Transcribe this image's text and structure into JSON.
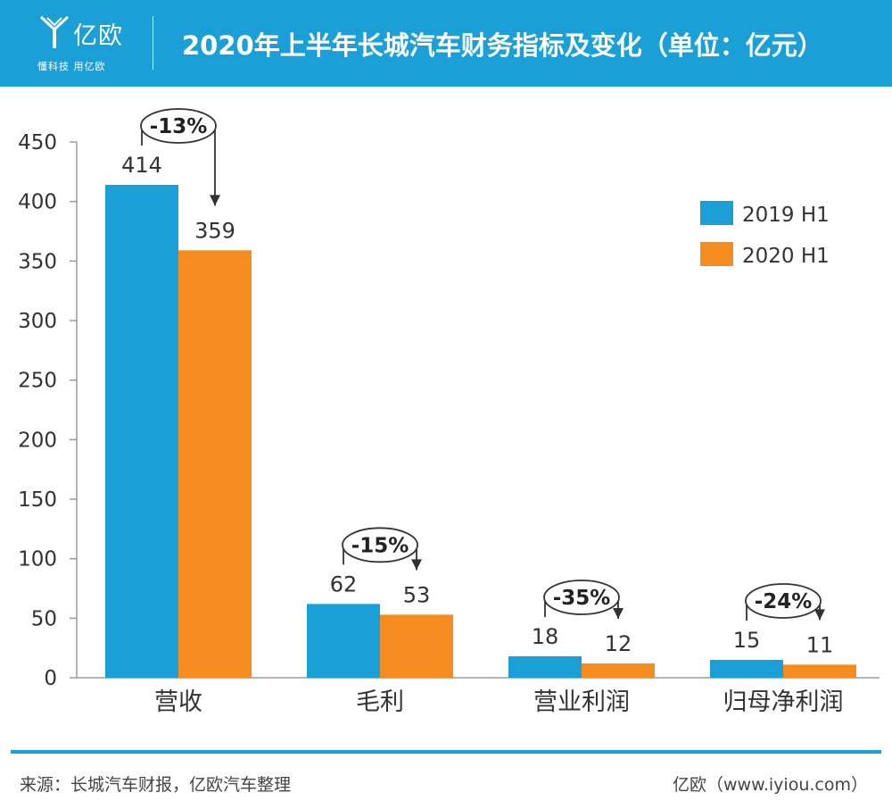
{
  "header": {
    "logo_name": "亿欧",
    "logo_slogan": "懂科技 用亿欧",
    "title": "2020年上半年长城汽车财务指标及变化（单位：亿元）"
  },
  "colors": {
    "header_bg": "#1aa0d6",
    "series_2019": "#1aa0d6",
    "series_2020": "#f58c1f"
  },
  "chart_data": {
    "type": "bar",
    "title": "2020年上半年长城汽车财务指标及变化（单位：亿元）",
    "unit": "亿元",
    "categories": [
      "营收",
      "毛利",
      "营业利润",
      "归母净利润"
    ],
    "series": [
      {
        "name": "2019 H1",
        "values": [
          414,
          62,
          18,
          15
        ]
      },
      {
        "name": "2020 H1",
        "values": [
          359,
          53,
          12,
          11
        ]
      }
    ],
    "changes": [
      "-13%",
      "-15%",
      "-35%",
      "-24%"
    ],
    "ylim": [
      0,
      450
    ],
    "yticks": [
      0,
      50,
      100,
      150,
      200,
      250,
      300,
      350,
      400,
      450
    ],
    "xlabel": "",
    "ylabel": "",
    "legend_position": "top-right",
    "grid": false
  },
  "footer": {
    "source": "来源：长城汽车财报，亿欧汽车整理",
    "site": "亿欧（www.iyiou.com）"
  }
}
